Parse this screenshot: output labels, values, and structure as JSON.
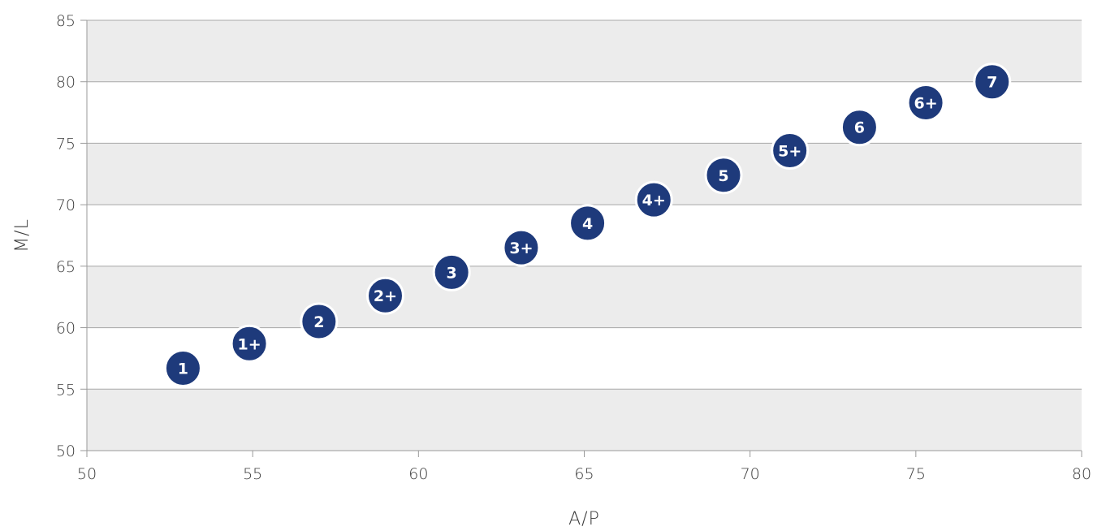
{
  "chart_data": {
    "type": "scatter",
    "title": "",
    "xlabel": "A/P",
    "ylabel": "M/L",
    "xlim": [
      50,
      80
    ],
    "ylim": [
      50,
      85
    ],
    "xticks": [
      50,
      55,
      60,
      65,
      70,
      75,
      80
    ],
    "yticks": [
      50,
      55,
      60,
      65,
      70,
      75,
      80,
      85
    ],
    "grid": true,
    "marker_color": "#1e3a7b",
    "points": [
      {
        "label": "1",
        "x": 52.9,
        "y": 56.7
      },
      {
        "label": "1+",
        "x": 54.9,
        "y": 58.7
      },
      {
        "label": "2",
        "x": 57.0,
        "y": 60.5
      },
      {
        "label": "2+",
        "x": 59.0,
        "y": 62.6
      },
      {
        "label": "3",
        "x": 61.0,
        "y": 64.5
      },
      {
        "label": "3+",
        "x": 63.1,
        "y": 66.5
      },
      {
        "label": "4",
        "x": 65.1,
        "y": 68.5
      },
      {
        "label": "4+",
        "x": 67.1,
        "y": 70.4
      },
      {
        "label": "5",
        "x": 69.2,
        "y": 72.4
      },
      {
        "label": "5+",
        "x": 71.2,
        "y": 74.4
      },
      {
        "label": "6",
        "x": 73.3,
        "y": 76.3
      },
      {
        "label": "6+",
        "x": 75.3,
        "y": 78.3
      },
      {
        "label": "7",
        "x": 77.3,
        "y": 80.0
      }
    ]
  }
}
